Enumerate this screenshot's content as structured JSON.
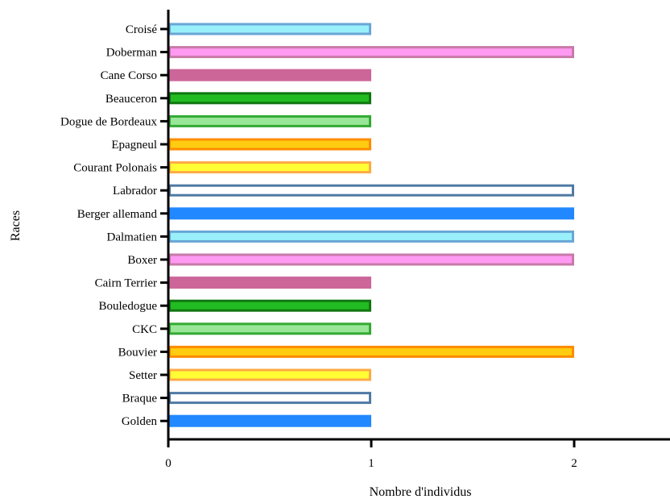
{
  "chart_data": {
    "type": "bar",
    "orientation": "horizontal",
    "title": "",
    "xlabel": "Nombre d'individus",
    "ylabel": "Races",
    "xlim": [
      0,
      2.5
    ],
    "xticks": [
      "0",
      "1",
      "2"
    ],
    "grid": false,
    "categories": [
      "Croisé",
      "Doberman",
      "Cane Corso",
      "Beauceron",
      "Dogue de Bordeaux",
      "Epagneul",
      "Courant Polonais",
      "Labrador",
      "Berger allemand",
      "Dalmatien",
      "Boxer",
      "Cairn Terrier",
      "Bouledogue",
      "CKC",
      "Bouvier",
      "Setter",
      "Braque",
      "Golden"
    ],
    "values": [
      1,
      2,
      1,
      1,
      1,
      1,
      1,
      2,
      2,
      2,
      2,
      1,
      1,
      1,
      2,
      1,
      1,
      1
    ],
    "bar_styles": [
      {
        "fill": "#99f0fa",
        "stroke": "#6aa6d6"
      },
      {
        "fill": "#ff99f2",
        "stroke": "#c77aa8"
      },
      {
        "fill": "#cc6699",
        "stroke": "#cc6699"
      },
      {
        "fill": "#22bb22",
        "stroke": "#117711"
      },
      {
        "fill": "#99e699",
        "stroke": "#33aa33"
      },
      {
        "fill": "#ffcc11",
        "stroke": "#ff8c00"
      },
      {
        "fill": "#ffff33",
        "stroke": "#ffaa44"
      },
      {
        "fill": "#ffffff",
        "stroke": "#4f7aa3"
      },
      {
        "fill": "#2288ff",
        "stroke": "#2288ff"
      },
      {
        "fill": "#99f0fa",
        "stroke": "#6aa6d6"
      },
      {
        "fill": "#ff99f2",
        "stroke": "#c77aa8"
      },
      {
        "fill": "#cc6699",
        "stroke": "#cc6699"
      },
      {
        "fill": "#22bb22",
        "stroke": "#117711"
      },
      {
        "fill": "#99e699",
        "stroke": "#33aa33"
      },
      {
        "fill": "#ffcc11",
        "stroke": "#ff8c00"
      },
      {
        "fill": "#ffff33",
        "stroke": "#ffaa44"
      },
      {
        "fill": "#ffffff",
        "stroke": "#4f7aa3"
      },
      {
        "fill": "#2288ff",
        "stroke": "#2288ff"
      }
    ]
  }
}
